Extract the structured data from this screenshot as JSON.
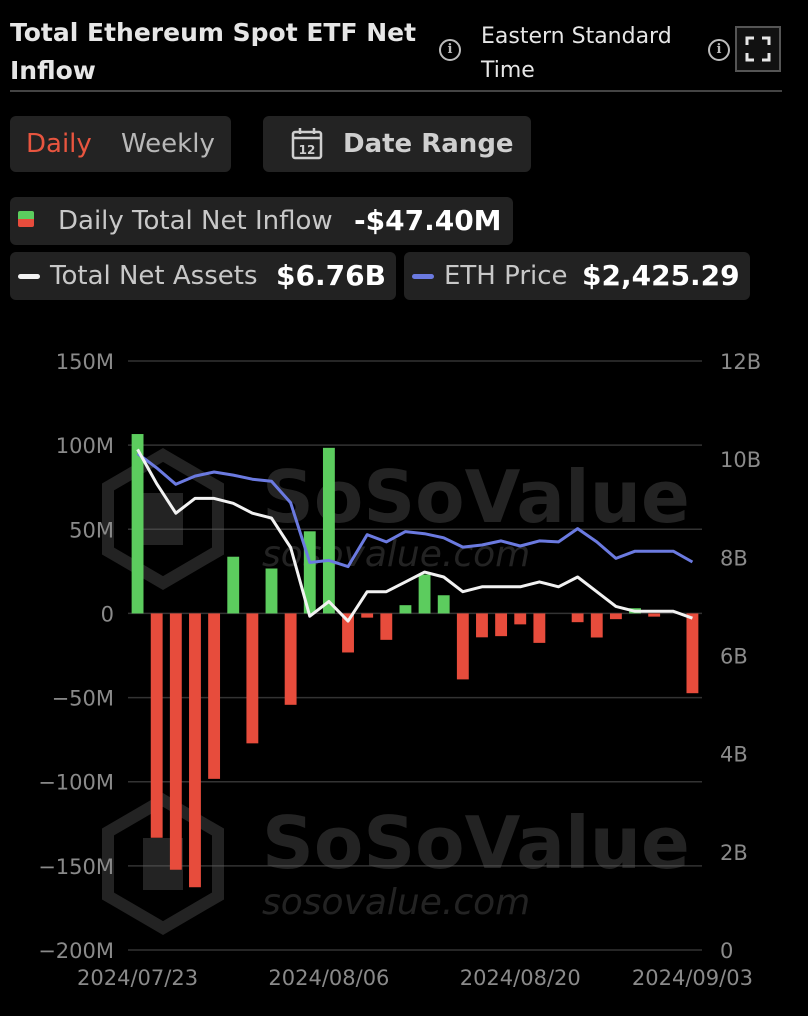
{
  "header": {
    "title": "Total Ethereum Spot ETF Net Inflow",
    "timezone": "Eastern Standard Time",
    "info_icon": "info-icon",
    "fullscreen_icon": "expand-icon"
  },
  "controls": {
    "period_options": [
      "Daily",
      "Weekly"
    ],
    "period_selected": "Daily",
    "date_range_label": "Date Range",
    "calendar_icon_day": "12"
  },
  "summary": {
    "daily_inflow_label": "Daily Total Net Inflow",
    "daily_inflow_value": "-$47.40M",
    "net_assets_label": "Total Net Assets",
    "net_assets_value": "$6.76B",
    "eth_price_label": "ETH Price",
    "eth_price_value": "$2,425.29"
  },
  "watermark": {
    "brand": "SoSoValue",
    "url": "sosovalue.com"
  },
  "colors": {
    "positive": "#5ccc5e",
    "negative": "#e74c3c",
    "net_assets_line": "#f2f2f2",
    "eth_price_line": "#6b7ae0",
    "accent": "#e8553f",
    "background": "#000000"
  },
  "chart_data": {
    "type": "bar",
    "x": [
      "2024/07/23",
      "2024/07/24",
      "2024/07/25",
      "2024/07/26",
      "2024/07/29",
      "2024/07/30",
      "2024/07/31",
      "2024/08/01",
      "2024/08/02",
      "2024/08/05",
      "2024/08/06",
      "2024/08/07",
      "2024/08/08",
      "2024/08/09",
      "2024/08/12",
      "2024/08/13",
      "2024/08/14",
      "2024/08/15",
      "2024/08/16",
      "2024/08/19",
      "2024/08/20",
      "2024/08/21",
      "2024/08/22",
      "2024/08/23",
      "2024/08/26",
      "2024/08/27",
      "2024/08/28",
      "2024/08/29",
      "2024/08/30",
      "2024/09/03"
    ],
    "x_tick_labels": [
      "2024/07/23",
      "2024/08/06",
      "2024/08/20",
      "2024/09/03"
    ],
    "series": [
      {
        "name": "Daily Total Net Inflow",
        "axis": "left",
        "values": [
          106.6,
          -133.3,
          -152.3,
          -162.7,
          -98.3,
          33.7,
          -77.2,
          26.7,
          -54.3,
          48.8,
          98.4,
          -23.2,
          -2.5,
          -15.7,
          4.9,
          23.1,
          10.8,
          -39.2,
          -14.2,
          -13.5,
          -6.5,
          -17.5,
          0,
          -5.2,
          -14.3,
          -3.4,
          3.1,
          -1.9,
          0,
          -47.4
        ]
      },
      {
        "name": "Total Net Assets",
        "axis": "right",
        "values": [
          10.2,
          9.5,
          8.9,
          9.2,
          9.2,
          9.1,
          8.9,
          8.8,
          8.2,
          6.8,
          7.1,
          6.7,
          7.3,
          7.3,
          7.5,
          7.7,
          7.6,
          7.3,
          7.4,
          7.4,
          7.4,
          7.5,
          7.4,
          7.6,
          7.3,
          7.0,
          6.9,
          6.9,
          6.9,
          6.76
        ]
      },
      {
        "name": "ETH Price",
        "axis": "price",
        "values": [
          3480,
          3340,
          3180,
          3260,
          3300,
          3270,
          3230,
          3210,
          3000,
          2420,
          2440,
          2380,
          2690,
          2620,
          2720,
          2700,
          2660,
          2570,
          2590,
          2630,
          2580,
          2630,
          2620,
          2750,
          2620,
          2460,
          2530,
          2530,
          2530,
          2425.29
        ]
      }
    ],
    "ylim_left": [
      -200,
      150
    ],
    "ylim_right": [
      0,
      12
    ],
    "y_tick_labels_left": [
      "150M",
      "100M",
      "50M",
      "0",
      "−50M",
      "−100M",
      "−150M",
      "−200M"
    ],
    "y_tick_labels_right": [
      "12B",
      "10B",
      "8B",
      "6B",
      "4B",
      "2B",
      "0"
    ],
    "grid": true,
    "legend": "top"
  }
}
